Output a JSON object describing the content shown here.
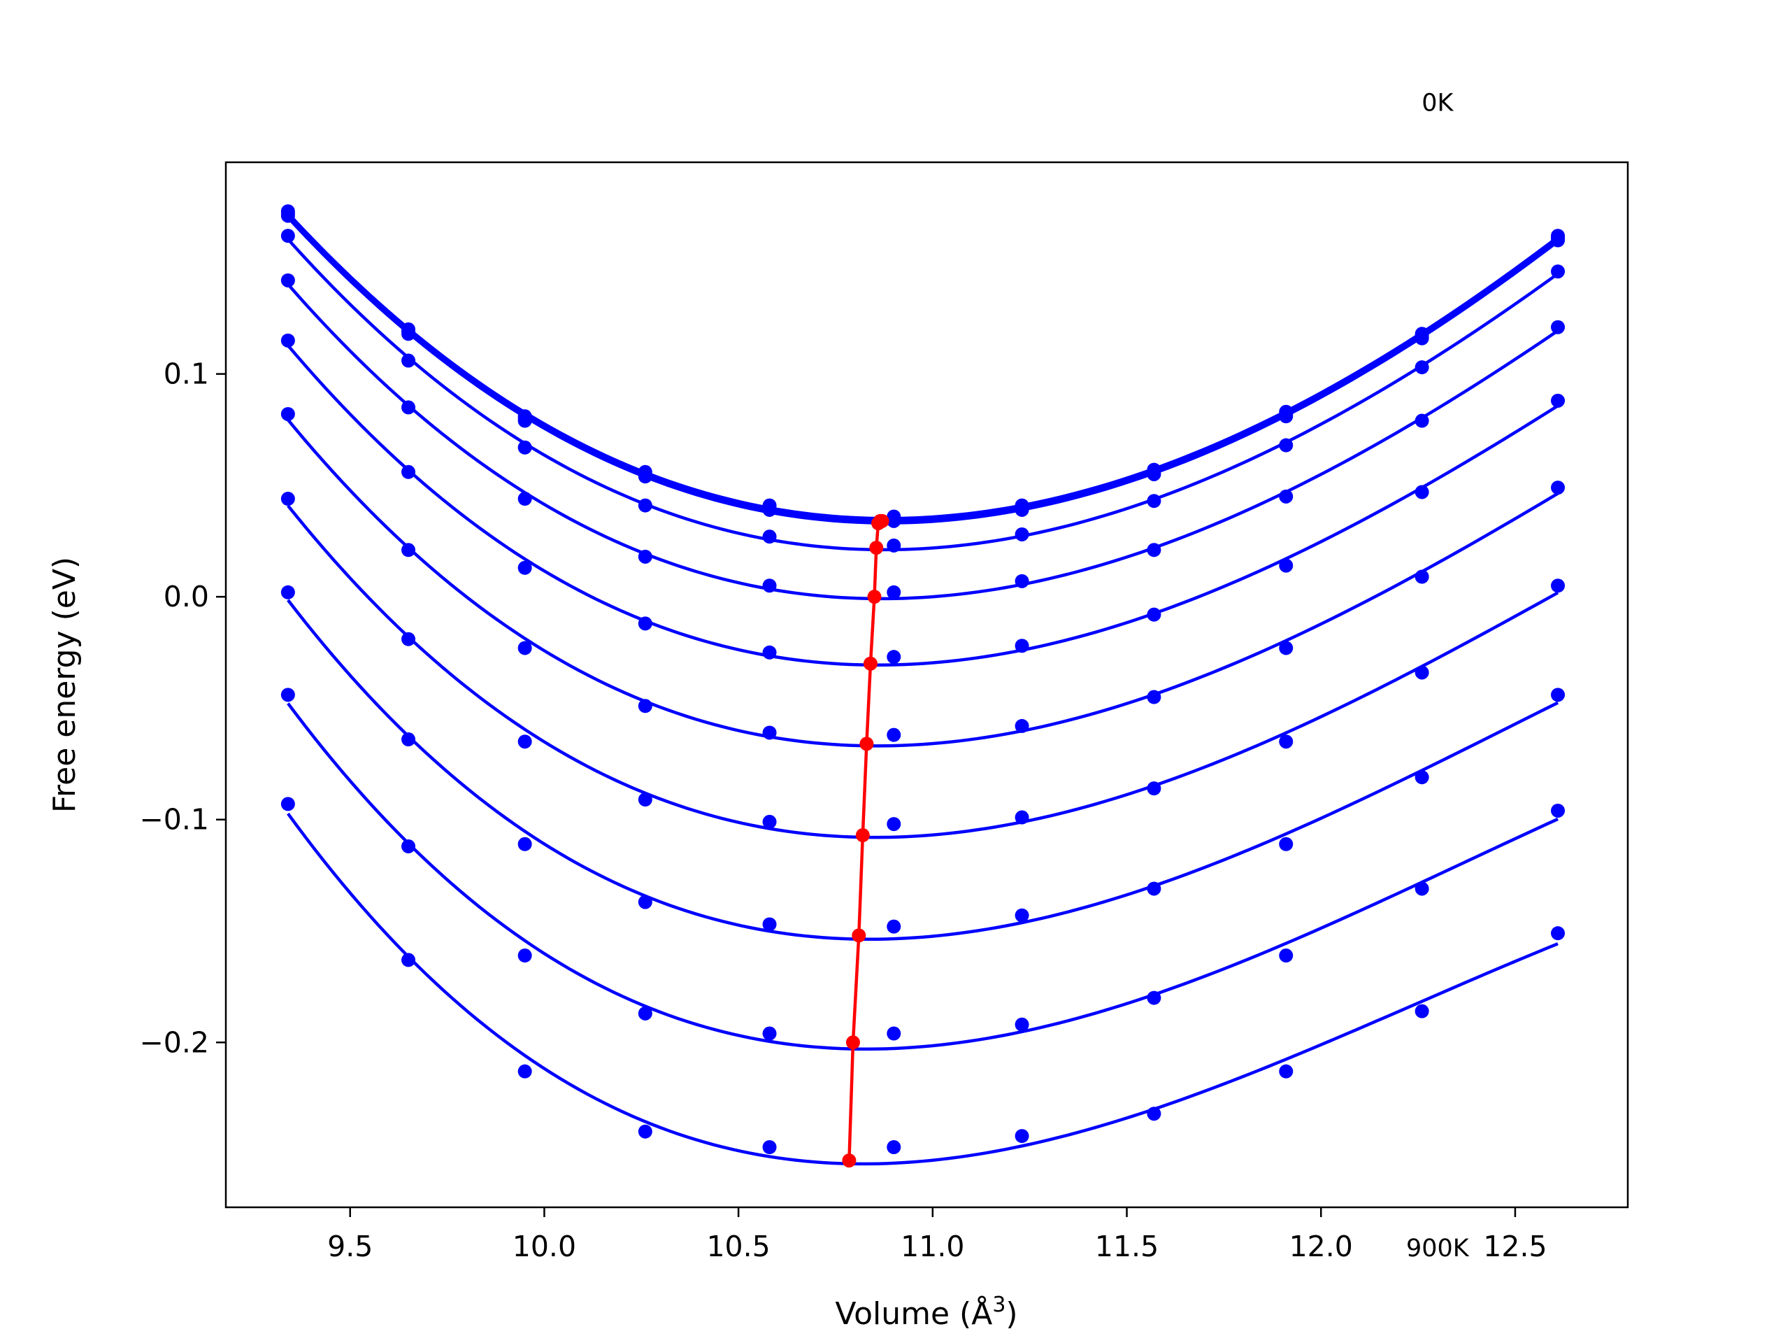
{
  "chart_data": {
    "type": "line",
    "title": "",
    "xlabel": "Volume (Å",
    "xlabel_sup": "3",
    "xlabel_close": ")",
    "ylabel": "Free energy (eV)",
    "xlim": [
      9.18,
      12.79
    ],
    "ylim": [
      -0.274,
      0.195
    ],
    "grid": false,
    "x_ticks": [
      9.5,
      10.0,
      10.5,
      11.0,
      11.5,
      12.0,
      12.5
    ],
    "x_tick_labels": [
      "9.5",
      "10.0",
      "10.5",
      "11.0",
      "11.5",
      "12.0",
      "12.5"
    ],
    "y_ticks": [
      -0.2,
      -0.1,
      0.0,
      0.1
    ],
    "y_tick_labels": [
      "−0.2",
      "−0.1",
      "0.0",
      "0.1"
    ],
    "annotations": [
      {
        "text": "0K",
        "x": 12.3,
        "y": 0.218
      },
      {
        "text": "900K",
        "x": 12.3,
        "y": -0.296
      }
    ],
    "colors": {
      "curves": "#0000ff",
      "minima": "#ff0000",
      "axes": "#000000"
    },
    "volumes": [
      9.34,
      9.65,
      9.95,
      10.26,
      10.58,
      10.9,
      11.23,
      11.57,
      11.91,
      12.26,
      12.61
    ],
    "series": [
      {
        "values": [
          0.173,
          0.12,
          0.081,
          0.056,
          0.041,
          0.036,
          0.041,
          0.057,
          0.083,
          0.118,
          0.162
        ]
      },
      {
        "values": [
          0.172,
          0.119,
          0.08,
          0.055,
          0.04,
          0.035,
          0.04,
          0.056,
          0.082,
          0.117,
          0.161
        ]
      },
      {
        "values": [
          0.171,
          0.118,
          0.079,
          0.054,
          0.039,
          0.034,
          0.039,
          0.055,
          0.081,
          0.116,
          0.16
        ]
      },
      {
        "values": [
          0.162,
          0.106,
          0.067,
          0.041,
          0.027,
          0.023,
          0.028,
          0.043,
          0.068,
          0.103,
          0.146
        ]
      },
      {
        "values": [
          0.142,
          0.085,
          0.044,
          0.018,
          0.005,
          0.002,
          0.007,
          0.021,
          0.045,
          0.079,
          0.121
        ]
      },
      {
        "values": [
          0.115,
          0.056,
          0.013,
          -0.012,
          -0.025,
          -0.027,
          -0.022,
          -0.008,
          0.014,
          0.047,
          0.088
        ]
      },
      {
        "values": [
          0.082,
          0.021,
          -0.023,
          -0.049,
          -0.061,
          -0.062,
          -0.058,
          -0.045,
          -0.023,
          0.009,
          0.049
        ]
      },
      {
        "values": [
          0.044,
          -0.019,
          -0.065,
          -0.091,
          -0.101,
          -0.102,
          -0.099,
          -0.086,
          -0.065,
          -0.034,
          0.005
        ]
      },
      {
        "values": [
          0.002,
          -0.064,
          -0.111,
          -0.137,
          -0.147,
          -0.148,
          -0.143,
          -0.131,
          -0.111,
          -0.081,
          -0.044
        ]
      },
      {
        "values": [
          -0.044,
          -0.112,
          -0.161,
          -0.187,
          -0.196,
          -0.196,
          -0.192,
          -0.18,
          -0.161,
          -0.131,
          -0.096
        ]
      },
      {
        "values": [
          -0.093,
          -0.163,
          -0.213,
          -0.24,
          -0.247,
          -0.247,
          -0.242,
          -0.232,
          -0.213,
          -0.186,
          -0.151
        ]
      }
    ],
    "fit_minima": [
      {
        "x": 10.87,
        "y": 0.034
      },
      {
        "x": 10.865,
        "y": 0.034
      },
      {
        "x": 10.86,
        "y": 0.033
      },
      {
        "x": 10.855,
        "y": 0.022
      },
      {
        "x": 10.85,
        "y": 0.0
      },
      {
        "x": 10.84,
        "y": -0.03
      },
      {
        "x": 10.83,
        "y": -0.066
      },
      {
        "x": 10.82,
        "y": -0.107
      },
      {
        "x": 10.81,
        "y": -0.152
      },
      {
        "x": 10.795,
        "y": -0.2
      },
      {
        "x": 10.785,
        "y": -0.253
      }
    ]
  }
}
